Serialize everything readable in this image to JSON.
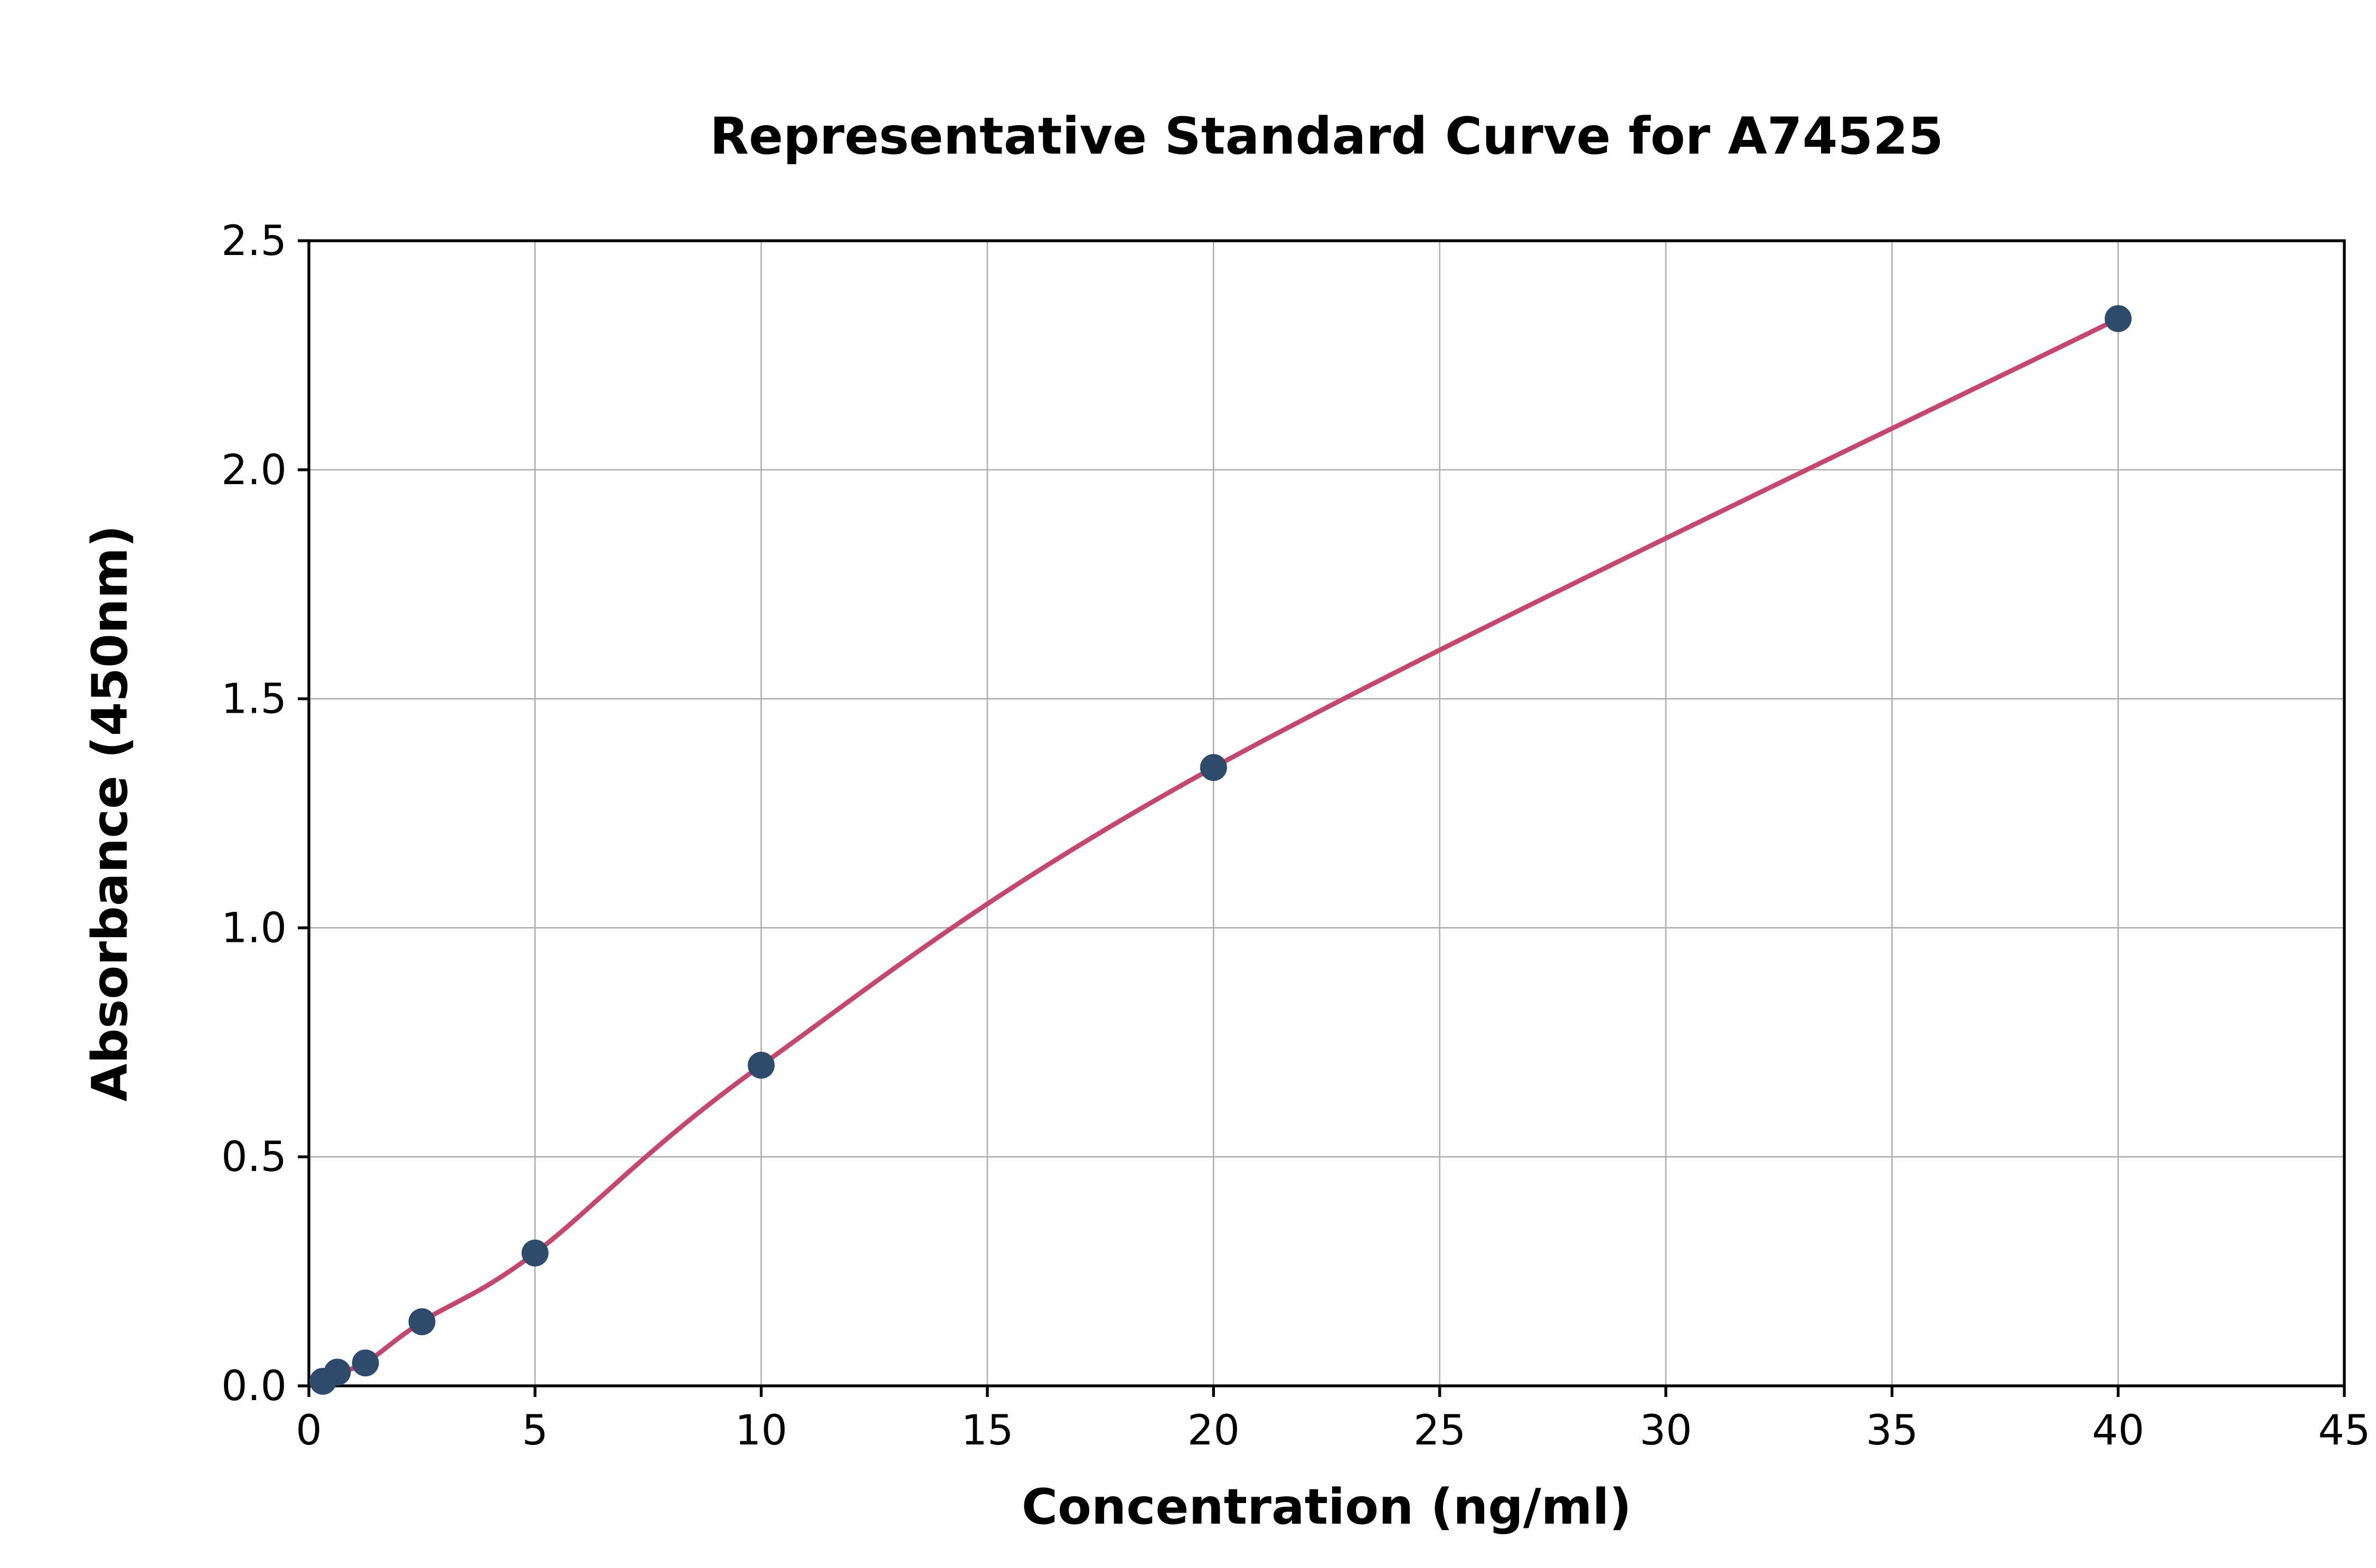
{
  "chart_data": {
    "type": "scatter",
    "title": "Representative Standard Curve for A74525",
    "xlabel": "Concentration (ng/ml)",
    "ylabel": "Absorbance (450nm)",
    "xlim": [
      0,
      45
    ],
    "ylim": [
      0,
      2.5
    ],
    "grid": true,
    "legend": "none",
    "xticks": {
      "values": [
        0,
        5,
        10,
        15,
        20,
        25,
        30,
        35,
        40,
        45
      ],
      "labels": [
        "0",
        "5",
        "10",
        "15",
        "20",
        "25",
        "30",
        "35",
        "40",
        "45"
      ]
    },
    "yticks": {
      "values": [
        0.0,
        0.5,
        1.0,
        1.5,
        2.0,
        2.5
      ],
      "labels": [
        "0.0",
        "0.5",
        "1.0",
        "1.5",
        "2.0",
        "2.5"
      ]
    },
    "series": [
      {
        "name": "standard-points",
        "type": "scatter",
        "marker": "circle",
        "color": "#2e4b6b",
        "points": [
          [
            0.31,
            0.01
          ],
          [
            0.63,
            0.03
          ],
          [
            1.25,
            0.05
          ],
          [
            2.5,
            0.14
          ],
          [
            5,
            0.29
          ],
          [
            10,
            0.7
          ],
          [
            20,
            1.35
          ],
          [
            40,
            2.33
          ]
        ]
      },
      {
        "name": "fitted-curve",
        "type": "line",
        "color": "#c5476e",
        "width": 3
      }
    ],
    "colors": {
      "point": "#2e4b6b",
      "curve": "#c5476e",
      "grid": "#b0b0b0",
      "frame": "#000000",
      "background": "#ffffff"
    }
  }
}
